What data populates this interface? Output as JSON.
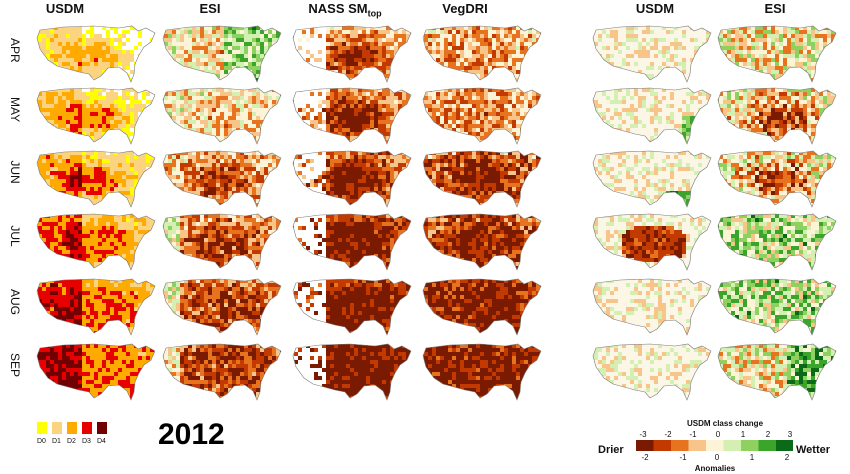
{
  "columns": {
    "usdm": "USDM",
    "esi": "ESI",
    "nass_base": "NASS SM",
    "nass_sub": "top",
    "vegdri": "VegDRI",
    "usdm_change": "USDM",
    "esi_change": "ESI"
  },
  "months": [
    "APR",
    "MAY",
    "JUN",
    "JUL",
    "AUG",
    "SEP"
  ],
  "year": "2012",
  "usdm_legend": {
    "labels": [
      "D0",
      "D1",
      "D2",
      "D3",
      "D4"
    ],
    "colors": [
      "#ffff00",
      "#fcd37f",
      "#ffaa00",
      "#e60000",
      "#730000"
    ]
  },
  "anomaly_legend": {
    "title": "USDM class change",
    "top_ticks": [
      "-3",
      "-2",
      "-1",
      "0",
      "1",
      "2",
      "3"
    ],
    "bottom_ticks": [
      "-2",
      "-1",
      "0",
      "1",
      "2"
    ],
    "subtitle": "Anomalies",
    "left_label": "Drier",
    "right_label": "Wetter",
    "colors": [
      "#7a1a00",
      "#c23a00",
      "#e8731e",
      "#f7c58a",
      "#fdf3d6",
      "#d3efb2",
      "#8fd160",
      "#3ba42a",
      "#0b6a18"
    ]
  },
  "palette": {
    "usdm": [
      "#ffff00",
      "#fcd37f",
      "#ffaa00",
      "#e60000",
      "#730000"
    ],
    "anomaly": [
      "#7a1a00",
      "#c23a00",
      "#e8731e",
      "#f7c58a",
      "#fdf3d6",
      "#d3efb2",
      "#8fd160",
      "#3ba42a",
      "#0b6a18"
    ]
  }
}
